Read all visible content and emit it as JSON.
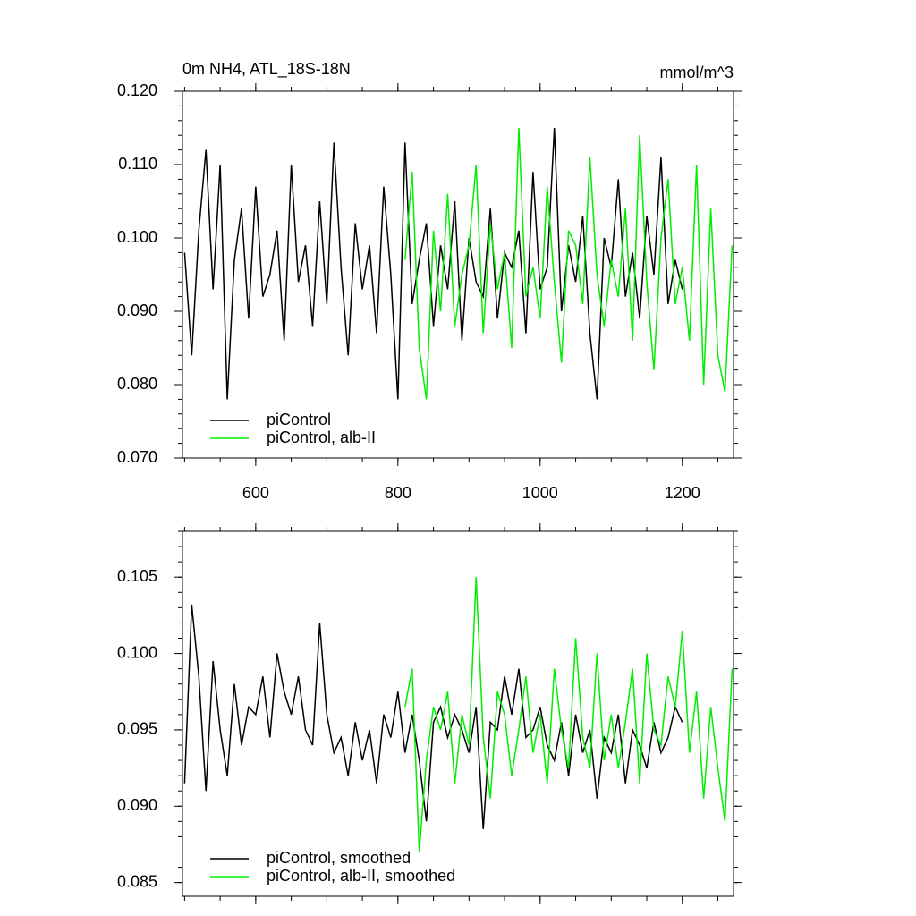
{
  "chart_data": [
    {
      "type": "line",
      "title": "0m NH4, ATL_18S-18N",
      "units": "mmol/m^3",
      "legend": "lower left",
      "xlim": [
        497,
        1272
      ],
      "xticks": [
        600,
        800,
        1000,
        1200
      ],
      "ylim": [
        0.07,
        0.12
      ],
      "yticks": [
        {
          "value": 0.07,
          "label": "0.070"
        },
        {
          "value": 0.08,
          "label": "0.080"
        },
        {
          "value": 0.09,
          "label": "0.090"
        },
        {
          "value": 0.1,
          "label": "0.100"
        },
        {
          "value": 0.11,
          "label": "0.110"
        },
        {
          "value": 0.12,
          "label": "0.120"
        }
      ],
      "series": [
        {
          "name": "piControl",
          "color": "#000000",
          "x": [
            500,
            510,
            520,
            530,
            540,
            550,
            560,
            570,
            580,
            590,
            600,
            610,
            620,
            630,
            640,
            650,
            660,
            670,
            680,
            690,
            700,
            710,
            720,
            730,
            740,
            750,
            760,
            770,
            780,
            790,
            800,
            810,
            820,
            830,
            840,
            850,
            860,
            870,
            880,
            890,
            900,
            910,
            920,
            930,
            940,
            950,
            960,
            970,
            980,
            990,
            1000,
            1010,
            1020,
            1030,
            1040,
            1050,
            1060,
            1070,
            1080,
            1090,
            1100,
            1110,
            1120,
            1130,
            1140,
            1150,
            1160,
            1170,
            1180,
            1190,
            1200
          ],
          "values": [
            0.098,
            0.084,
            0.101,
            0.112,
            0.093,
            0.11,
            0.078,
            0.097,
            0.104,
            0.089,
            0.107,
            0.092,
            0.095,
            0.101,
            0.086,
            0.11,
            0.094,
            0.099,
            0.088,
            0.105,
            0.091,
            0.113,
            0.096,
            0.084,
            0.102,
            0.093,
            0.099,
            0.087,
            0.107,
            0.095,
            0.078,
            0.113,
            0.091,
            0.097,
            0.102,
            0.088,
            0.099,
            0.093,
            0.105,
            0.086,
            0.1,
            0.094,
            0.092,
            0.104,
            0.089,
            0.098,
            0.096,
            0.101,
            0.087,
            0.109,
            0.093,
            0.096,
            0.115,
            0.09,
            0.099,
            0.094,
            0.103,
            0.087,
            0.078,
            0.1,
            0.096,
            0.108,
            0.092,
            0.098,
            0.089,
            0.103,
            0.095,
            0.111,
            0.091,
            0.097,
            0.093
          ]
        },
        {
          "name": "piControl, alb-II",
          "color": "#00ee00",
          "x": [
            810,
            820,
            830,
            840,
            850,
            860,
            870,
            880,
            890,
            900,
            910,
            920,
            930,
            940,
            950,
            960,
            970,
            980,
            990,
            1000,
            1010,
            1020,
            1030,
            1040,
            1050,
            1060,
            1070,
            1080,
            1090,
            1100,
            1110,
            1120,
            1130,
            1140,
            1150,
            1160,
            1170,
            1180,
            1190,
            1200,
            1210,
            1220,
            1230,
            1240,
            1250,
            1260,
            1270
          ],
          "values": [
            0.097,
            0.109,
            0.085,
            0.078,
            0.101,
            0.09,
            0.106,
            0.088,
            0.095,
            0.099,
            0.11,
            0.087,
            0.102,
            0.093,
            0.098,
            0.085,
            0.115,
            0.092,
            0.096,
            0.089,
            0.107,
            0.094,
            0.083,
            0.101,
            0.099,
            0.091,
            0.111,
            0.095,
            0.088,
            0.097,
            0.092,
            0.104,
            0.086,
            0.114,
            0.094,
            0.082,
            0.1,
            0.108,
            0.091,
            0.096,
            0.086,
            0.11,
            0.08,
            0.104,
            0.084,
            0.079,
            0.099
          ]
        }
      ]
    },
    {
      "type": "line",
      "legend": "lower left",
      "xlim": [
        497,
        1272
      ],
      "xticks": [
        600,
        800,
        1000,
        1200
      ],
      "ylim": [
        0.0841,
        0.108
      ],
      "yticks": [
        0.085,
        {
          "value": 0.09,
          "label": "0.090"
        },
        0.095,
        {
          "value": 0.1,
          "label": "0.100"
        },
        0.105
      ],
      "series": [
        {
          "name": "piControl, smoothed",
          "color": "#000000",
          "x": [
            500,
            510,
            520,
            530,
            540,
            550,
            560,
            570,
            580,
            590,
            600,
            610,
            620,
            630,
            640,
            650,
            660,
            670,
            680,
            690,
            700,
            710,
            720,
            730,
            740,
            750,
            760,
            770,
            780,
            790,
            800,
            810,
            820,
            830,
            840,
            850,
            860,
            870,
            880,
            890,
            900,
            910,
            920,
            930,
            940,
            950,
            960,
            970,
            980,
            990,
            1000,
            1010,
            1020,
            1030,
            1040,
            1050,
            1060,
            1070,
            1080,
            1090,
            1100,
            1110,
            1120,
            1130,
            1140,
            1150,
            1160,
            1170,
            1180,
            1190,
            1200
          ],
          "values": [
            0.0915,
            0.1032,
            0.0985,
            0.091,
            0.0995,
            0.095,
            0.092,
            0.098,
            0.094,
            0.0965,
            0.096,
            0.0985,
            0.0945,
            0.1,
            0.0975,
            0.096,
            0.0985,
            0.095,
            0.094,
            0.102,
            0.096,
            0.0935,
            0.0945,
            0.092,
            0.0955,
            0.093,
            0.095,
            0.0915,
            0.096,
            0.0945,
            0.0975,
            0.0935,
            0.096,
            0.093,
            0.089,
            0.0955,
            0.0965,
            0.0945,
            0.096,
            0.095,
            0.0935,
            0.0965,
            0.0885,
            0.0955,
            0.095,
            0.0985,
            0.096,
            0.099,
            0.0945,
            0.095,
            0.0965,
            0.094,
            0.093,
            0.0955,
            0.092,
            0.096,
            0.0935,
            0.095,
            0.0905,
            0.0945,
            0.0935,
            0.096,
            0.0915,
            0.095,
            0.094,
            0.0925,
            0.0955,
            0.0935,
            0.0945,
            0.0965,
            0.0955
          ]
        },
        {
          "name": "piControl, alb-II, smoothed",
          "color": "#00ee00",
          "x": [
            810,
            820,
            830,
            840,
            850,
            860,
            870,
            880,
            890,
            900,
            910,
            920,
            930,
            940,
            950,
            960,
            970,
            980,
            990,
            1000,
            1010,
            1020,
            1030,
            1040,
            1050,
            1060,
            1070,
            1080,
            1090,
            1100,
            1110,
            1120,
            1130,
            1140,
            1150,
            1160,
            1170,
            1180,
            1190,
            1200,
            1210,
            1220,
            1230,
            1240,
            1250,
            1260,
            1270
          ],
          "values": [
            0.0965,
            0.099,
            0.087,
            0.093,
            0.0965,
            0.095,
            0.0975,
            0.0915,
            0.096,
            0.094,
            0.105,
            0.0945,
            0.0905,
            0.0975,
            0.096,
            0.092,
            0.095,
            0.0985,
            0.0935,
            0.096,
            0.0915,
            0.099,
            0.095,
            0.0925,
            0.101,
            0.0945,
            0.0925,
            0.1,
            0.093,
            0.096,
            0.0925,
            0.0955,
            0.099,
            0.0915,
            0.1,
            0.095,
            0.094,
            0.0985,
            0.0965,
            0.1015,
            0.0935,
            0.0975,
            0.0905,
            0.0965,
            0.0925,
            0.089,
            0.099
          ]
        }
      ]
    }
  ]
}
